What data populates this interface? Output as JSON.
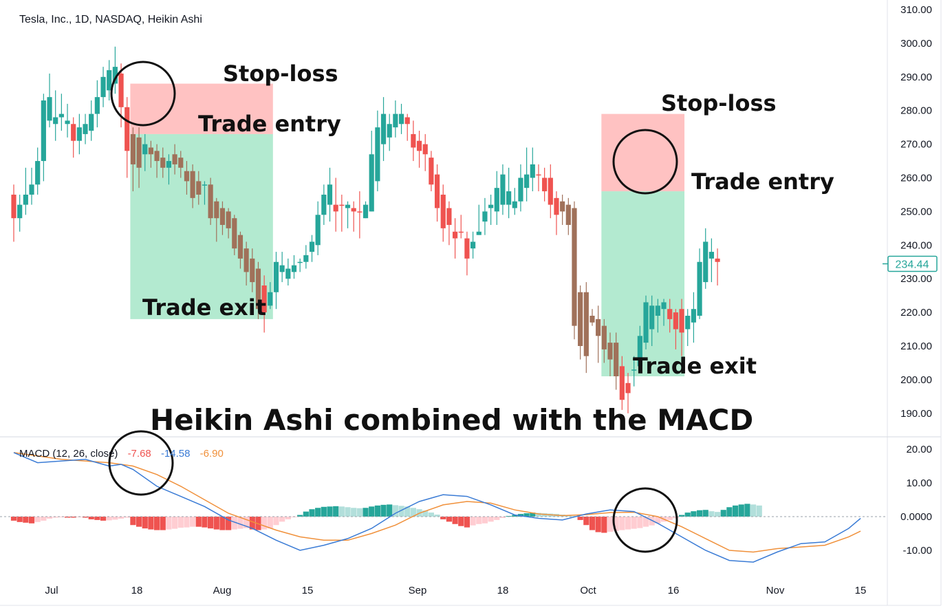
{
  "header": {
    "title": "Tesla, Inc., 1D, NASDAQ, Heikin Ashi"
  },
  "caption": "Heikin Ashi combined with the MACD",
  "annotations": {
    "stop_loss_1": "Stop-loss",
    "trade_entry_1": "Trade entry",
    "trade_exit_1": "Trade exit",
    "stop_loss_2": "Stop-loss",
    "trade_entry_2": "Trade entry",
    "trade_exit_2": "Trade exit"
  },
  "macd_legend": {
    "label": "MACD (12, 26, close)",
    "hist_value": "-7.68",
    "macd_value": "-14.58",
    "signal_value": "-6.90"
  },
  "price_badge": "234.44",
  "colors": {
    "up": "#26a69a",
    "down": "#ef5350",
    "brown": "#a0715a",
    "stop_zone": "#ffc2c2",
    "profit_zone": "#b3ead0",
    "macd_line": "#3a7bd5",
    "signal_line": "#f0903a",
    "hist_up_strong": "#26a69a",
    "hist_up_weak": "#b2dfdb",
    "hist_down_strong": "#ef5350",
    "hist_down_weak": "#ffcdd2"
  },
  "chart_data": [
    {
      "type": "candlestick",
      "title": "Tesla, Inc., 1D, NASDAQ, Heikin Ashi",
      "y_ticks": [
        "310.00",
        "300.00",
        "290.00",
        "280.00",
        "270.00",
        "260.00",
        "250.00",
        "240.00",
        "230.00",
        "220.00",
        "210.00",
        "200.00",
        "190.00"
      ],
      "ylim": [
        183,
        313
      ],
      "x_ticks": [
        "Jul",
        "18",
        "Aug",
        "15",
        "Sep",
        "18",
        "Oct",
        "16",
        "Nov",
        "15"
      ],
      "last_price": 234.44,
      "candles": [
        [
          255,
          248,
          258,
          241,
          "d"
        ],
        [
          248,
          252,
          255,
          244,
          "u"
        ],
        [
          252,
          255,
          263,
          249,
          "u"
        ],
        [
          255,
          258,
          263,
          252,
          "u"
        ],
        [
          258,
          265,
          269,
          255,
          "u"
        ],
        [
          265,
          283,
          285,
          259,
          "u"
        ],
        [
          277,
          284,
          291,
          275,
          "u"
        ],
        [
          276,
          278,
          286,
          271,
          "u"
        ],
        [
          279,
          278,
          285,
          274,
          "u"
        ],
        [
          276,
          277,
          282,
          272,
          "u"
        ],
        [
          276,
          271,
          278,
          266,
          "d"
        ],
        [
          271,
          275,
          279,
          267,
          "u"
        ],
        [
          273,
          276,
          279,
          270,
          "u"
        ],
        [
          274,
          279,
          283,
          271,
          "u"
        ],
        [
          279,
          284,
          289,
          275,
          "u"
        ],
        [
          284,
          290,
          293,
          281,
          "u"
        ],
        [
          286,
          292,
          295,
          283,
          "u"
        ],
        [
          288,
          293,
          299,
          285,
          "u"
        ],
        [
          291,
          281,
          294,
          275,
          "d"
        ],
        [
          281,
          268,
          284,
          260,
          "d"
        ],
        [
          273,
          264,
          275,
          256,
          "b"
        ],
        [
          272,
          263,
          275,
          257,
          "b"
        ],
        [
          267,
          270,
          273,
          262,
          "u"
        ],
        [
          269,
          267,
          271,
          263,
          "b"
        ],
        [
          268,
          265,
          270,
          260,
          "b"
        ],
        [
          266,
          263,
          269,
          260,
          "b"
        ],
        [
          263,
          265,
          267,
          258,
          "u"
        ],
        [
          267,
          264,
          270,
          261,
          "b"
        ],
        [
          266,
          263,
          268,
          260,
          "b"
        ],
        [
          262,
          259,
          265,
          255,
          "b"
        ],
        [
          262,
          254,
          264,
          251,
          "b"
        ],
        [
          259,
          255,
          262,
          252,
          "b"
        ],
        [
          258,
          258,
          259,
          252,
          "u"
        ],
        [
          258,
          248,
          260,
          246,
          "b"
        ],
        [
          253,
          248,
          254,
          241,
          "b"
        ],
        [
          251,
          246,
          253,
          243,
          "b"
        ],
        [
          250,
          245,
          251,
          242,
          "b"
        ],
        [
          248,
          239,
          249,
          237,
          "b"
        ],
        [
          243,
          236,
          244,
          233,
          "b"
        ],
        [
          239,
          232,
          241,
          228,
          "b"
        ],
        [
          236,
          229,
          239,
          226,
          "b"
        ],
        [
          233,
          221,
          235,
          218,
          "b"
        ],
        [
          228,
          220,
          231,
          214,
          "d"
        ],
        [
          222,
          226,
          229,
          221,
          "u"
        ],
        [
          226,
          235,
          238,
          221,
          "u"
        ],
        [
          232,
          234,
          238,
          229,
          "u"
        ],
        [
          230,
          233,
          236,
          228,
          "u"
        ],
        [
          232,
          234,
          237,
          230,
          "u"
        ],
        [
          235,
          235,
          236,
          232,
          "u"
        ],
        [
          237,
          235,
          240,
          233,
          "u"
        ],
        [
          238,
          241,
          243,
          235,
          "u"
        ],
        [
          240,
          249,
          253,
          237,
          "u"
        ],
        [
          249,
          255,
          258,
          246,
          "u"
        ],
        [
          252,
          258,
          263,
          247,
          "u"
        ],
        [
          250,
          252,
          260,
          244,
          "d"
        ],
        [
          252,
          252,
          255,
          244,
          "d"
        ],
        [
          251,
          252,
          253,
          245,
          "u"
        ],
        [
          251,
          250,
          253,
          244,
          "d"
        ],
        [
          250,
          250,
          256,
          242,
          "d"
        ],
        [
          248,
          252,
          253,
          248,
          "u"
        ],
        [
          250,
          267,
          274,
          250,
          "u"
        ],
        [
          259,
          275,
          280,
          256,
          "u"
        ],
        [
          270,
          279,
          284,
          265,
          "u"
        ],
        [
          272,
          276,
          279,
          268,
          "u"
        ],
        [
          275,
          279,
          283,
          272,
          "u"
        ],
        [
          276,
          279,
          282,
          273,
          "u"
        ],
        [
          278,
          276,
          279,
          271,
          "d"
        ],
        [
          273,
          269,
          277,
          265,
          "d"
        ],
        [
          271,
          268,
          274,
          263,
          "d"
        ],
        [
          270,
          267,
          273,
          262,
          "d"
        ],
        [
          266,
          258,
          268,
          256,
          "d"
        ],
        [
          261,
          251,
          264,
          247,
          "d"
        ],
        [
          255,
          245,
          258,
          241,
          "d"
        ],
        [
          251,
          246,
          253,
          240,
          "d"
        ],
        [
          244,
          242,
          248,
          236,
          "d"
        ],
        [
          244,
          244,
          249,
          242,
          "d"
        ],
        [
          242,
          236,
          244,
          231,
          "d"
        ],
        [
          239,
          241,
          244,
          236,
          "u"
        ],
        [
          243,
          244,
          252,
          243,
          "u"
        ],
        [
          247,
          250,
          254,
          243,
          "u"
        ],
        [
          252,
          251,
          255,
          246,
          "u"
        ],
        [
          250,
          257,
          262,
          246,
          "u"
        ],
        [
          252,
          261,
          264,
          249,
          "u"
        ],
        [
          252,
          256,
          263,
          248,
          "u"
        ],
        [
          251,
          253,
          257,
          249,
          "u"
        ],
        [
          253,
          260,
          264,
          250,
          "u"
        ],
        [
          257,
          261,
          269,
          253,
          "u"
        ],
        [
          260,
          264,
          269,
          256,
          "u"
        ],
        [
          261,
          261,
          264,
          256,
          "d"
        ],
        [
          260,
          256,
          263,
          253,
          "d"
        ],
        [
          260,
          252,
          264,
          248,
          "d"
        ],
        [
          254,
          249,
          256,
          243,
          "d"
        ],
        [
          250,
          253,
          255,
          246,
          "b"
        ],
        [
          252,
          246,
          254,
          243,
          "b"
        ],
        [
          251,
          216,
          253,
          212,
          "b"
        ],
        [
          226,
          210,
          228,
          206,
          "b"
        ],
        [
          226,
          207,
          229,
          202,
          "b"
        ],
        [
          217,
          219,
          221,
          216,
          "b"
        ],
        [
          218,
          213,
          222,
          205,
          "b"
        ],
        [
          216,
          209,
          218,
          205,
          "b"
        ],
        [
          211,
          206,
          214,
          201,
          "b"
        ],
        [
          211,
          201,
          214,
          197,
          "b"
        ],
        [
          204,
          194,
          207,
          191,
          "d"
        ],
        [
          199,
          196,
          202,
          190,
          "d"
        ],
        [
          203,
          203,
          207,
          198,
          "u"
        ],
        [
          204,
          213,
          216,
          202,
          "u"
        ],
        [
          211,
          223,
          225,
          209,
          "u"
        ],
        [
          215,
          222,
          225,
          210,
          "u"
        ],
        [
          219,
          222,
          224,
          214,
          "u"
        ],
        [
          221,
          223,
          224,
          216,
          "u"
        ],
        [
          221,
          218,
          224,
          214,
          "d"
        ],
        [
          220,
          215,
          221,
          209,
          "d"
        ],
        [
          221,
          214,
          224,
          207,
          "d"
        ],
        [
          215,
          219,
          221,
          210,
          "u"
        ],
        [
          217,
          221,
          226,
          211,
          "u"
        ],
        [
          219,
          235,
          239,
          218,
          "u"
        ],
        [
          229,
          241,
          245,
          227,
          "u"
        ],
        [
          238,
          236,
          242,
          229,
          "u"
        ],
        [
          235,
          236,
          239,
          228,
          "d"
        ]
      ],
      "trade_zones": [
        {
          "stop": 288,
          "entry": 273,
          "exit": 218,
          "first_candle": 20,
          "last_candle": 43
        },
        {
          "stop": 279,
          "entry": 256,
          "exit": 201,
          "first_candle": 99,
          "last_candle": 112
        }
      ],
      "highlight_circles": [
        {
          "price": 284,
          "candle": 18
        },
        {
          "price": 263,
          "candle": 95
        }
      ]
    },
    {
      "type": "macd",
      "title": "MACD (12, 26, close)",
      "y_ticks": [
        "20.00",
        "10.00",
        "0.0000",
        "-10.00"
      ],
      "ylim": [
        -20,
        23
      ],
      "x_ticks": [
        "Jul",
        "18",
        "Aug",
        "15",
        "Sep",
        "18",
        "Oct",
        "16",
        "Nov",
        "15"
      ],
      "macd": [
        [
          0,
          19
        ],
        [
          4,
          16
        ],
        [
          8,
          16.5
        ],
        [
          12,
          17
        ],
        [
          16,
          15
        ],
        [
          18,
          15.5
        ],
        [
          20,
          14
        ],
        [
          24,
          9
        ],
        [
          28,
          6
        ],
        [
          32,
          3
        ],
        [
          36,
          -1
        ],
        [
          40,
          -3.5
        ],
        [
          44,
          -7
        ],
        [
          48,
          -10
        ],
        [
          52,
          -8.5
        ],
        [
          56,
          -6.5
        ],
        [
          60,
          -3.5
        ],
        [
          64,
          1
        ],
        [
          68,
          4.5
        ],
        [
          72,
          6.5
        ],
        [
          76,
          6
        ],
        [
          80,
          3.5
        ],
        [
          84,
          0.5
        ],
        [
          88,
          -0.5
        ],
        [
          92,
          -1
        ],
        [
          96,
          0.8
        ],
        [
          100,
          2
        ],
        [
          104,
          1.5
        ],
        [
          108,
          -2
        ],
        [
          112,
          -6
        ],
        [
          116,
          -10
        ],
        [
          120,
          -13
        ],
        [
          124,
          -13.5
        ],
        [
          128,
          -10.5
        ],
        [
          132,
          -8
        ],
        [
          136,
          -7.5
        ],
        [
          140,
          -3.5
        ],
        [
          142,
          -0.5
        ]
      ],
      "signal": [
        [
          0,
          19
        ],
        [
          4,
          18
        ],
        [
          8,
          17
        ],
        [
          12,
          16.5
        ],
        [
          16,
          16
        ],
        [
          20,
          15
        ],
        [
          24,
          12.5
        ],
        [
          28,
          9
        ],
        [
          32,
          5
        ],
        [
          36,
          1
        ],
        [
          40,
          -1.5
        ],
        [
          44,
          -4
        ],
        [
          48,
          -6
        ],
        [
          52,
          -7
        ],
        [
          56,
          -7
        ],
        [
          60,
          -5
        ],
        [
          64,
          -2.5
        ],
        [
          68,
          1
        ],
        [
          72,
          3.5
        ],
        [
          76,
          4.5
        ],
        [
          80,
          4
        ],
        [
          84,
          2
        ],
        [
          88,
          0.8
        ],
        [
          92,
          0.3
        ],
        [
          96,
          0.6
        ],
        [
          100,
          1.2
        ],
        [
          104,
          1.3
        ],
        [
          108,
          0
        ],
        [
          112,
          -3
        ],
        [
          116,
          -6.5
        ],
        [
          120,
          -10
        ],
        [
          124,
          -10.5
        ],
        [
          128,
          -9.5
        ],
        [
          132,
          -9
        ],
        [
          136,
          -8.5
        ],
        [
          140,
          -6
        ],
        [
          142,
          -4.3
        ]
      ],
      "histogram": [
        -1.2,
        -1.6,
        -1.8,
        -2,
        -1.6,
        -1.2,
        -0.6,
        -0.3,
        -0.2,
        -0.3,
        -0.3,
        -0.2,
        -0.3,
        -0.8,
        -1,
        -1.2,
        -1.1,
        -0.9,
        -0.6,
        -0.3,
        -2.5,
        -3,
        -3.5,
        -3.8,
        -4,
        -4,
        -3.8,
        -3.6,
        -3.3,
        -3.2,
        -3,
        -3,
        -3.2,
        -3.5,
        -3.8,
        -4,
        -4,
        -3.8,
        -3.6,
        -3.4,
        -3.8,
        -4,
        -3.8,
        -3.5,
        -2.5,
        -1.5,
        -0.8,
        -0.2,
        0.5,
        1.5,
        2.2,
        2.6,
        2.9,
        3,
        3.1,
        3,
        2.8,
        2.6,
        2.5,
        2.6,
        3,
        3.3,
        3.5,
        3.6,
        3.4,
        3.2,
        3,
        2.6,
        2.2,
        1.8,
        1.2,
        0.6,
        -0.8,
        -1.5,
        -2.2,
        -2.8,
        -3.2,
        -2.6,
        -2.2,
        -2,
        -1.5,
        -1,
        -0.4,
        0.2,
        0.5,
        0.8,
        1,
        1.2,
        1.1,
        1,
        0.9,
        0.8,
        0.6,
        0.4,
        0.2,
        -1,
        -2.5,
        -4,
        -4.6,
        -4.8,
        -4.5,
        -4.3,
        -4,
        -3.8,
        -3.6,
        -3.4,
        -3,
        -2.6,
        -2,
        -1.5,
        -1,
        -0.5,
        0.5,
        1.2,
        1.6,
        1.9,
        2,
        1.6,
        1.4,
        2,
        2.8,
        3.3,
        3.6,
        3.8,
        3.6,
        3.3
      ]
    }
  ]
}
